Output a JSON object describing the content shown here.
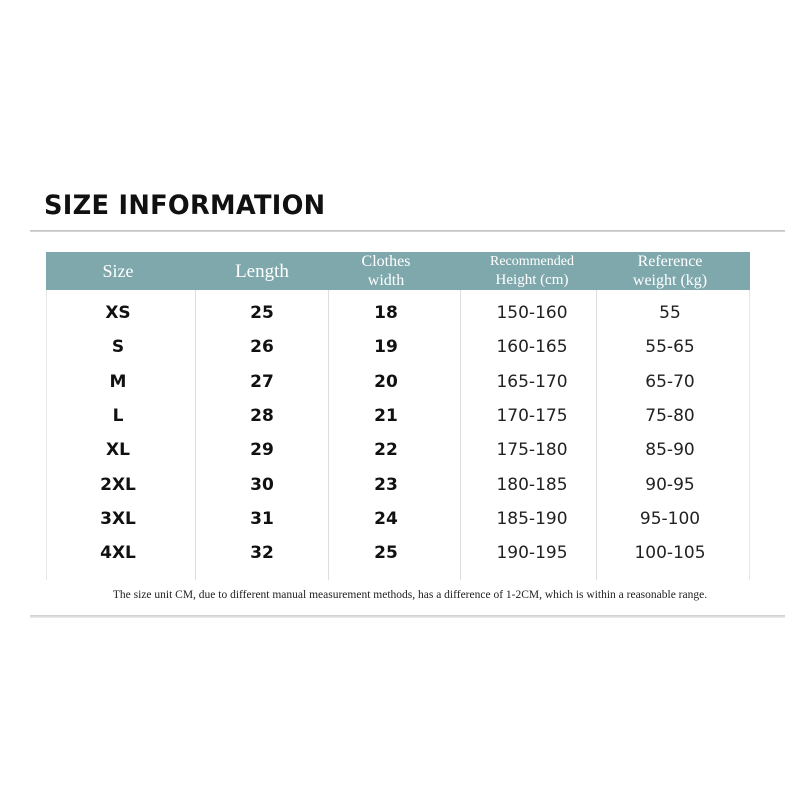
{
  "title": "SIZE INFORMATION",
  "header_color": "#7fa8ad",
  "columns": [
    {
      "line1": "Size",
      "line2": ""
    },
    {
      "line1": "Length",
      "line2": ""
    },
    {
      "line1": "Clothes",
      "line2": "width"
    },
    {
      "line1": "Recommended",
      "line2": "Height (cm)"
    },
    {
      "line1": "Reference",
      "line2": "weight (kg)"
    }
  ],
  "rows": [
    [
      "XS",
      "25",
      "18",
      "150-160",
      "55"
    ],
    [
      "S",
      "26",
      "19",
      "160-165",
      "55-65"
    ],
    [
      "M",
      "27",
      "20",
      "165-170",
      "65-70"
    ],
    [
      "L",
      "28",
      "21",
      "170-175",
      "75-80"
    ],
    [
      "XL",
      "29",
      "22",
      "175-180",
      "85-90"
    ],
    [
      "2XL",
      "30",
      "23",
      "180-185",
      "90-95"
    ],
    [
      "3XL",
      "31",
      "24",
      "185-190",
      "95-100"
    ],
    [
      "4XL",
      "32",
      "25",
      "190-195",
      "100-105"
    ]
  ],
  "note": "The size unit CM, due to different manual measurement methods, has a difference of 1-2CM, which is within a reasonable range."
}
